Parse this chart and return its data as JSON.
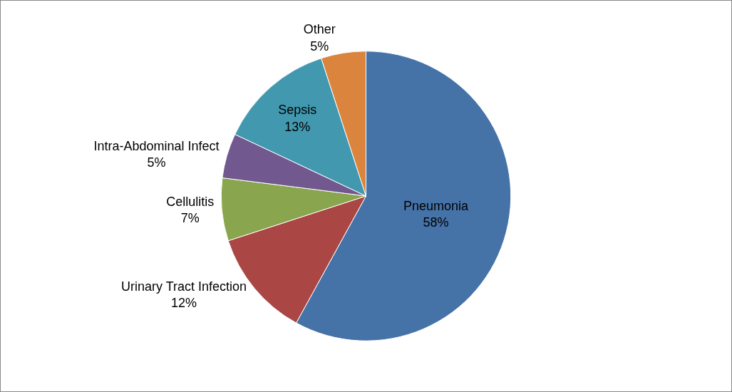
{
  "chart_data": {
    "type": "pie",
    "categories": [
      "Pneumonia",
      "Urinary Tract Infection",
      "Cellulitis",
      "Intra-Abdominal Infect",
      "Sepsis",
      "Other"
    ],
    "values": [
      58,
      12,
      7,
      5,
      13,
      5
    ],
    "value_labels": [
      "58%",
      "12%",
      "7%",
      "5%",
      "13%",
      "5%"
    ],
    "colors": [
      "#4572a7",
      "#aa4643",
      "#89a54e",
      "#71588f",
      "#4198af",
      "#db843d"
    ],
    "legend": false
  }
}
